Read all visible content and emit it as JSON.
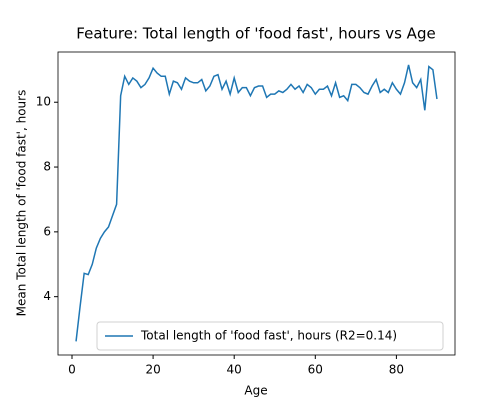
{
  "chart_data": {
    "type": "line",
    "title": "Feature: Total length of 'food fast', hours vs Age",
    "x_label": "Age",
    "y_label": "Mean Total length of 'food fast', hours",
    "x": [
      1,
      2,
      3,
      4,
      5,
      6,
      7,
      8,
      9,
      10,
      11,
      12,
      13,
      14,
      15,
      16,
      17,
      18,
      19,
      20,
      21,
      22,
      23,
      24,
      25,
      26,
      27,
      28,
      29,
      30,
      31,
      32,
      33,
      34,
      35,
      36,
      37,
      38,
      39,
      40,
      41,
      42,
      43,
      44,
      45,
      46,
      47,
      48,
      49,
      50,
      51,
      52,
      53,
      54,
      55,
      56,
      57,
      58,
      59,
      60,
      61,
      62,
      63,
      64,
      65,
      66,
      67,
      68,
      69,
      70,
      71,
      72,
      73,
      74,
      75,
      76,
      77,
      78,
      79,
      80,
      81,
      82,
      83,
      84,
      85,
      86,
      87,
      88,
      89,
      90
    ],
    "series": [
      {
        "name": "Total length of 'food fast', hours (R2=0.14)",
        "color": "#1f77b4",
        "values": [
          2.62,
          3.7,
          4.72,
          4.68,
          5.0,
          5.5,
          5.8,
          6.0,
          6.15,
          6.5,
          6.85,
          10.2,
          10.8,
          10.55,
          10.75,
          10.65,
          10.45,
          10.55,
          10.75,
          11.05,
          10.9,
          10.8,
          10.8,
          10.25,
          10.65,
          10.6,
          10.4,
          10.75,
          10.65,
          10.6,
          10.6,
          10.7,
          10.35,
          10.5,
          10.8,
          10.85,
          10.4,
          10.65,
          10.25,
          10.75,
          10.3,
          10.45,
          10.45,
          10.2,
          10.45,
          10.5,
          10.5,
          10.15,
          10.25,
          10.25,
          10.35,
          10.3,
          10.4,
          10.55,
          10.4,
          10.5,
          10.3,
          10.55,
          10.45,
          10.25,
          10.4,
          10.4,
          10.5,
          10.2,
          10.6,
          10.15,
          10.2,
          10.05,
          10.55,
          10.55,
          10.45,
          10.3,
          10.25,
          10.5,
          10.7,
          10.3,
          10.4,
          10.3,
          10.6,
          10.4,
          10.25,
          10.6,
          11.15,
          10.6,
          10.45,
          10.7,
          9.75,
          11.1,
          11.0,
          10.1
        ]
      }
    ],
    "xlim": [
      -3.45,
      94.45
    ],
    "xticks": [
      0,
      20,
      40,
      60,
      80
    ],
    "ylim": [
      2.2,
      11.55
    ],
    "yticks": [
      4,
      6,
      8,
      10
    ],
    "legend": "lower right",
    "grid": false
  }
}
